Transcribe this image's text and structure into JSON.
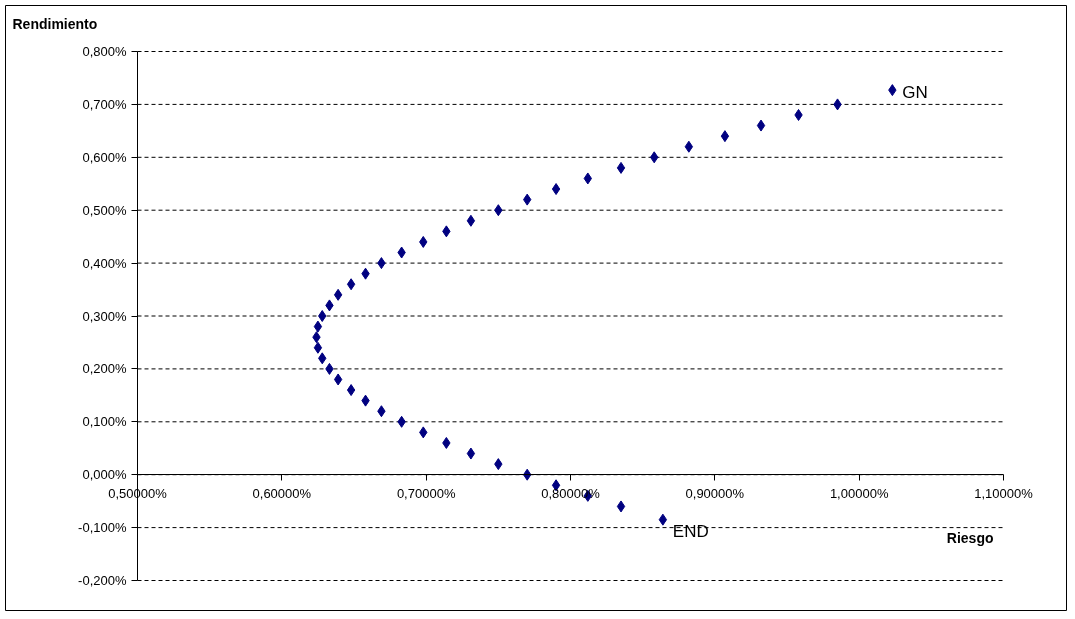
{
  "chart_data": {
    "type": "scatter",
    "xlabel": "Riesgo",
    "ylabel": "Rendimiento",
    "xlim": [
      0.5,
      1.1
    ],
    "ylim": [
      -0.2,
      0.8
    ],
    "xticks": [
      {
        "value": 0.5,
        "label": "0,50000%"
      },
      {
        "value": 0.6,
        "label": "0,60000%"
      },
      {
        "value": 0.7,
        "label": "0,70000%"
      },
      {
        "value": 0.8,
        "label": "0,80000%"
      },
      {
        "value": 0.9,
        "label": "0,90000%"
      },
      {
        "value": 1.0,
        "label": "1,00000%"
      },
      {
        "value": 1.1,
        "label": "1,10000%"
      }
    ],
    "yticks": [
      {
        "value": -0.2,
        "label": "-0,200%"
      },
      {
        "value": -0.1,
        "label": "-0,100%"
      },
      {
        "value": 0,
        "label": "0,000%"
      },
      {
        "value": 0.1,
        "label": "0,100%"
      },
      {
        "value": 0.2,
        "label": "0,200%"
      },
      {
        "value": 0.3,
        "label": "0,300%"
      },
      {
        "value": 0.4,
        "label": "0,400%"
      },
      {
        "value": 0.5,
        "label": "0,500%"
      },
      {
        "value": 0.6,
        "label": "0,600%"
      },
      {
        "value": 0.7,
        "label": "0,700%"
      },
      {
        "value": 0.8,
        "label": "0,800%"
      }
    ],
    "grid": "y",
    "marker": "diamond",
    "series": [
      {
        "color": "#000080",
        "x": [
          0.864,
          0.835,
          0.812,
          0.79,
          0.77,
          0.75,
          0.731,
          0.714,
          0.698,
          0.683,
          0.669,
          0.658,
          0.648,
          0.639,
          0.633,
          0.628,
          0.625,
          0.624,
          0.625,
          0.628,
          0.633,
          0.639,
          0.648,
          0.658,
          0.669,
          0.683,
          0.698,
          0.714,
          0.731,
          0.75,
          0.77,
          0.79,
          0.812,
          0.835,
          0.858,
          0.882,
          0.907,
          0.932,
          0.958,
          0.985,
          1.023
        ],
        "values": [
          -0.085,
          -0.06,
          -0.04,
          -0.02,
          0.0,
          0.02,
          0.04,
          0.06,
          0.08,
          0.1,
          0.12,
          0.14,
          0.16,
          0.18,
          0.2,
          0.22,
          0.24,
          0.26,
          0.28,
          0.3,
          0.32,
          0.34,
          0.36,
          0.38,
          0.4,
          0.42,
          0.44,
          0.46,
          0.48,
          0.5,
          0.52,
          0.54,
          0.56,
          0.58,
          0.6,
          0.62,
          0.64,
          0.66,
          0.68,
          0.7,
          0.727
        ]
      }
    ],
    "annotations": [
      {
        "text": "GN",
        "x": 1.023,
        "y": 0.727
      },
      {
        "text": "END",
        "x": 0.864,
        "y": -0.085
      }
    ]
  }
}
